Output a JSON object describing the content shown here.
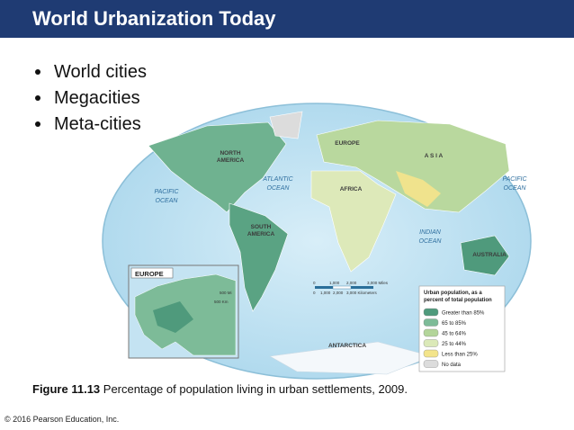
{
  "header": {
    "title": "World Urbanization Today"
  },
  "bullets": [
    "World cities",
    "Megacities",
    "Meta-cities"
  ],
  "map": {
    "labels": {
      "north_america": [
        "NORTH",
        "AMERICA"
      ],
      "atlantic": [
        "ATLANTIC",
        "OCEAN"
      ],
      "pacific_west": [
        "PACIFIC",
        "OCEAN"
      ],
      "pacific_east": [
        "PACIFIC",
        "OCEAN"
      ],
      "europe": "EUROPE",
      "asia": "A S I A",
      "africa": "AFRICA",
      "south_america": [
        "SOUTH",
        "AMERICA"
      ],
      "indian": [
        "INDIAN",
        "OCEAN"
      ],
      "australia": "AUSTRALIA",
      "antarctica": "ANTARCTICA"
    },
    "scale": {
      "miles": [
        "0",
        "1,000",
        "2,000",
        "3,000 Miles"
      ],
      "kilometers": [
        "0",
        "1,000",
        "2,000",
        "3,000 Kilometers"
      ]
    },
    "inset": {
      "title": "EUROPE",
      "miles": "500 Mi",
      "kilometers": "500 Km"
    },
    "legend": {
      "title": [
        "Urban population, as a",
        "percent of total population"
      ],
      "items": [
        {
          "label": "Greater than 85%",
          "color": "#4f9a7c"
        },
        {
          "label": "65 to 85%",
          "color": "#7dbb98"
        },
        {
          "label": "45 to 64%",
          "color": "#b3d59a"
        },
        {
          "label": "25 to 44%",
          "color": "#dbe9b8"
        },
        {
          "label": "Less than 25%",
          "color": "#f3e48a"
        },
        {
          "label": "No data",
          "color": "#dcdcdc"
        }
      ]
    }
  },
  "caption": {
    "label": "Figure 11.13",
    "text": "Percentage of population living in urban settlements, 2009."
  },
  "footer": {
    "copyright": "© 2016 Pearson Education, Inc."
  }
}
